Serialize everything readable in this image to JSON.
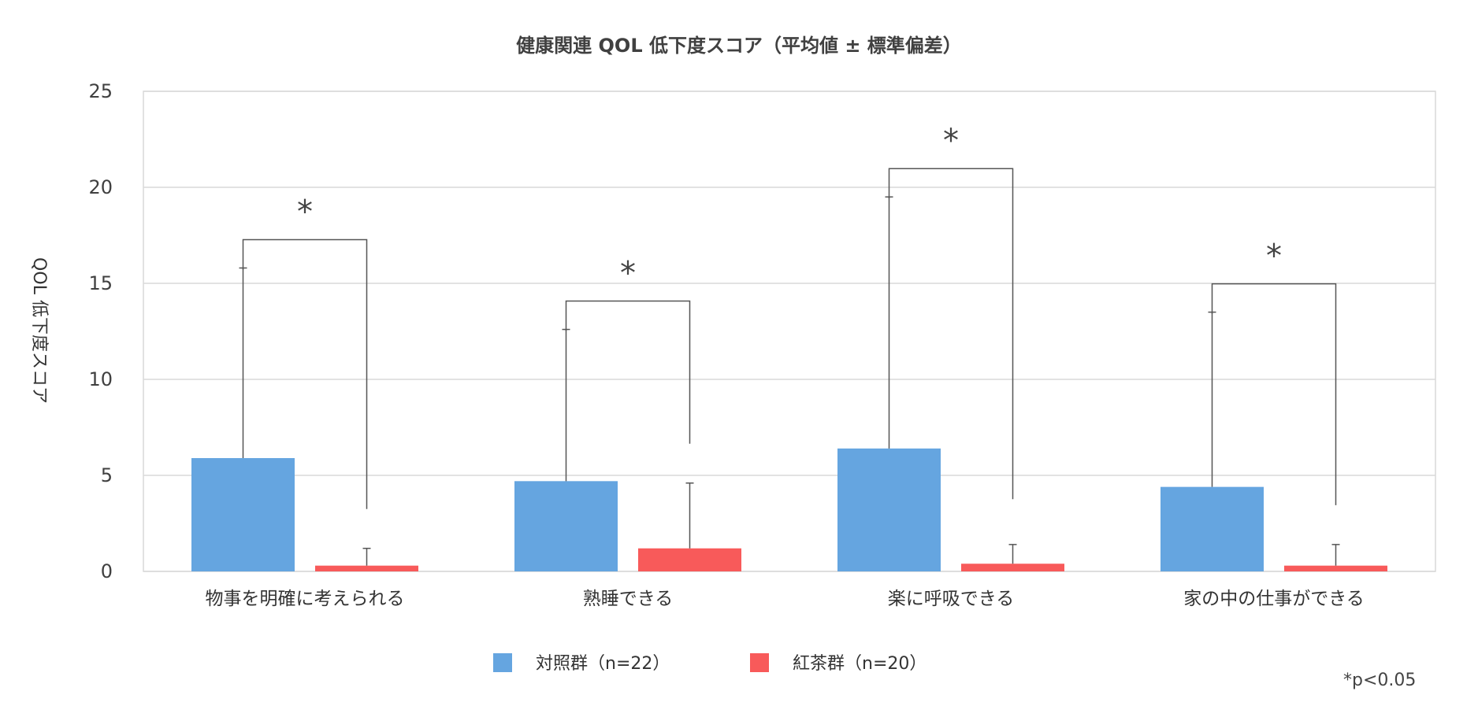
{
  "chart_data": {
    "type": "bar",
    "title": "健康関連 QOL 低下度スコア（平均値 ± 標準偏差）",
    "ylabel": "QOL 低下度スコア",
    "xlabel": "",
    "ylim": [
      0,
      25
    ],
    "yticks": [
      0,
      5,
      10,
      15,
      20,
      25
    ],
    "grid": true,
    "legend_position": "bottom",
    "categories": [
      "物事を明確に考えられる",
      "熟睡できる",
      "楽に呼吸できる",
      "家の中の仕事ができる"
    ],
    "series": [
      {
        "name": "対照群（n=22）",
        "color": "#65A5E0",
        "values": [
          5.9,
          4.7,
          6.4,
          4.4
        ],
        "error": [
          9.9,
          7.9,
          13.1,
          9.1
        ]
      },
      {
        "name": "紅茶群（n=20）",
        "color": "#F85A5A",
        "values": [
          0.3,
          1.2,
          0.4,
          0.3
        ],
        "error": [
          0.9,
          3.4,
          1.0,
          1.1
        ]
      }
    ],
    "significance": [
      "*",
      "*",
      "*",
      "*"
    ],
    "note": "*p<0.05"
  }
}
